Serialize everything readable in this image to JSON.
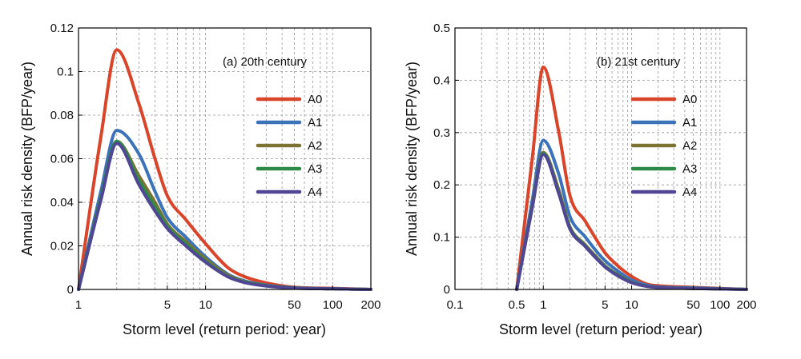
{
  "colors": {
    "A0": "#d9452a",
    "A1": "#3c73b8",
    "A2": "#7d7232",
    "A3": "#2e8a47",
    "A4": "#4f4793",
    "grid": "#999999",
    "frame": "#000000"
  },
  "chart_data": [
    {
      "type": "line",
      "annotation": "(a) 20th century",
      "xlabel": "Storm level (return period: year)",
      "ylabel": "Annual risk density (BFP/year)",
      "xscale": "log",
      "xlim": [
        1,
        200
      ],
      "ylim": [
        0,
        0.12
      ],
      "xticks": [
        1,
        5,
        10,
        50,
        100,
        200
      ],
      "xtick_labels": [
        "1",
        "5",
        "10",
        "50",
        "100",
        "200"
      ],
      "yticks": [
        0,
        0.02,
        0.04,
        0.06,
        0.08,
        0.1,
        0.12
      ],
      "ytick_labels": [
        "0",
        "0.02",
        "0.04",
        "0.06",
        "0.08",
        "0.1",
        "0.12"
      ],
      "grid": true,
      "legend_position": "right",
      "series": [
        {
          "name": "A0",
          "x": [
            1,
            1.5,
            2,
            3,
            4,
            5,
            7,
            10,
            15,
            20,
            30,
            50,
            100,
            200
          ],
          "y": [
            0,
            0.07,
            0.11,
            0.085,
            0.06,
            0.043,
            0.032,
            0.021,
            0.01,
            0.006,
            0.003,
            0.001,
            0.0005,
            0
          ]
        },
        {
          "name": "A1",
          "x": [
            1,
            1.5,
            2,
            3,
            4,
            5,
            7,
            10,
            15,
            20,
            30,
            50,
            100,
            200
          ],
          "y": [
            0,
            0.045,
            0.073,
            0.062,
            0.045,
            0.033,
            0.024,
            0.015,
            0.007,
            0.004,
            0.002,
            0.0008,
            0.0003,
            0
          ]
        },
        {
          "name": "A2",
          "x": [
            1,
            1.5,
            2,
            3,
            4,
            5,
            7,
            10,
            15,
            20,
            30,
            50,
            100,
            200
          ],
          "y": [
            0,
            0.042,
            0.068,
            0.052,
            0.04,
            0.03,
            0.022,
            0.014,
            0.0065,
            0.0037,
            0.0018,
            0.0007,
            0.0003,
            0
          ]
        },
        {
          "name": "A3",
          "x": [
            1,
            1.5,
            2,
            3,
            4,
            5,
            7,
            10,
            15,
            20,
            30,
            50,
            100,
            200
          ],
          "y": [
            0,
            0.042,
            0.068,
            0.05,
            0.038,
            0.029,
            0.021,
            0.013,
            0.006,
            0.0035,
            0.0017,
            0.0007,
            0.0003,
            0
          ]
        },
        {
          "name": "A4",
          "x": [
            1,
            1.5,
            2,
            3,
            4,
            5,
            7,
            10,
            15,
            20,
            30,
            50,
            100,
            200
          ],
          "y": [
            0,
            0.041,
            0.067,
            0.048,
            0.036,
            0.028,
            0.02,
            0.0125,
            0.0058,
            0.0033,
            0.0016,
            0.0006,
            0.0003,
            0
          ]
        }
      ]
    },
    {
      "type": "line",
      "annotation": "(b) 21st century",
      "xlabel": "Storm level (return period: year)",
      "ylabel": "Annual risk density (BFP/year)",
      "xscale": "log",
      "xlim": [
        0.1,
        200
      ],
      "ylim": [
        0,
        0.5
      ],
      "xticks": [
        0.1,
        0.5,
        1,
        5,
        10,
        50,
        100,
        200
      ],
      "xtick_labels": [
        "0.1",
        "0.5",
        "1",
        "5",
        "10",
        "50",
        "100",
        "200"
      ],
      "yticks": [
        0,
        0.1,
        0.2,
        0.3,
        0.4,
        0.5
      ],
      "ytick_labels": [
        "0",
        "0.1",
        "0.2",
        "0.3",
        "0.4",
        "0.5"
      ],
      "grid": true,
      "legend_position": "right",
      "series": [
        {
          "name": "A0",
          "x": [
            0.5,
            0.75,
            1,
            1.5,
            2,
            3,
            4,
            5,
            7,
            10,
            15,
            20,
            50,
            100,
            200
          ],
          "y": [
            0,
            0.25,
            0.425,
            0.3,
            0.18,
            0.13,
            0.095,
            0.07,
            0.045,
            0.025,
            0.01,
            0.007,
            0.004,
            0.002,
            0
          ]
        },
        {
          "name": "A1",
          "x": [
            0.5,
            0.75,
            1,
            1.5,
            2,
            3,
            4,
            5,
            7,
            10,
            15,
            20,
            50,
            100,
            200
          ],
          "y": [
            0,
            0.17,
            0.285,
            0.22,
            0.14,
            0.1,
            0.073,
            0.055,
            0.035,
            0.018,
            0.008,
            0.005,
            0.003,
            0.0015,
            0
          ]
        },
        {
          "name": "A2",
          "x": [
            0.5,
            0.75,
            1,
            1.5,
            2,
            3,
            4,
            5,
            7,
            10,
            15,
            20,
            50,
            100,
            200
          ],
          "y": [
            0,
            0.16,
            0.262,
            0.19,
            0.12,
            0.085,
            0.062,
            0.045,
            0.028,
            0.014,
            0.006,
            0.004,
            0.002,
            0.001,
            0
          ]
        },
        {
          "name": "A3",
          "x": [
            0.5,
            0.75,
            1,
            1.5,
            2,
            3,
            4,
            5,
            7,
            10,
            15,
            20,
            50,
            100,
            200
          ],
          "y": [
            0,
            0.158,
            0.26,
            0.185,
            0.118,
            0.083,
            0.06,
            0.044,
            0.027,
            0.0135,
            0.006,
            0.004,
            0.002,
            0.001,
            0
          ]
        },
        {
          "name": "A4",
          "x": [
            0.5,
            0.75,
            1,
            1.5,
            2,
            3,
            4,
            5,
            7,
            10,
            15,
            20,
            50,
            100,
            200
          ],
          "y": [
            0,
            0.157,
            0.258,
            0.183,
            0.116,
            0.082,
            0.059,
            0.043,
            0.026,
            0.013,
            0.0058,
            0.0038,
            0.0019,
            0.001,
            0
          ]
        }
      ]
    }
  ]
}
